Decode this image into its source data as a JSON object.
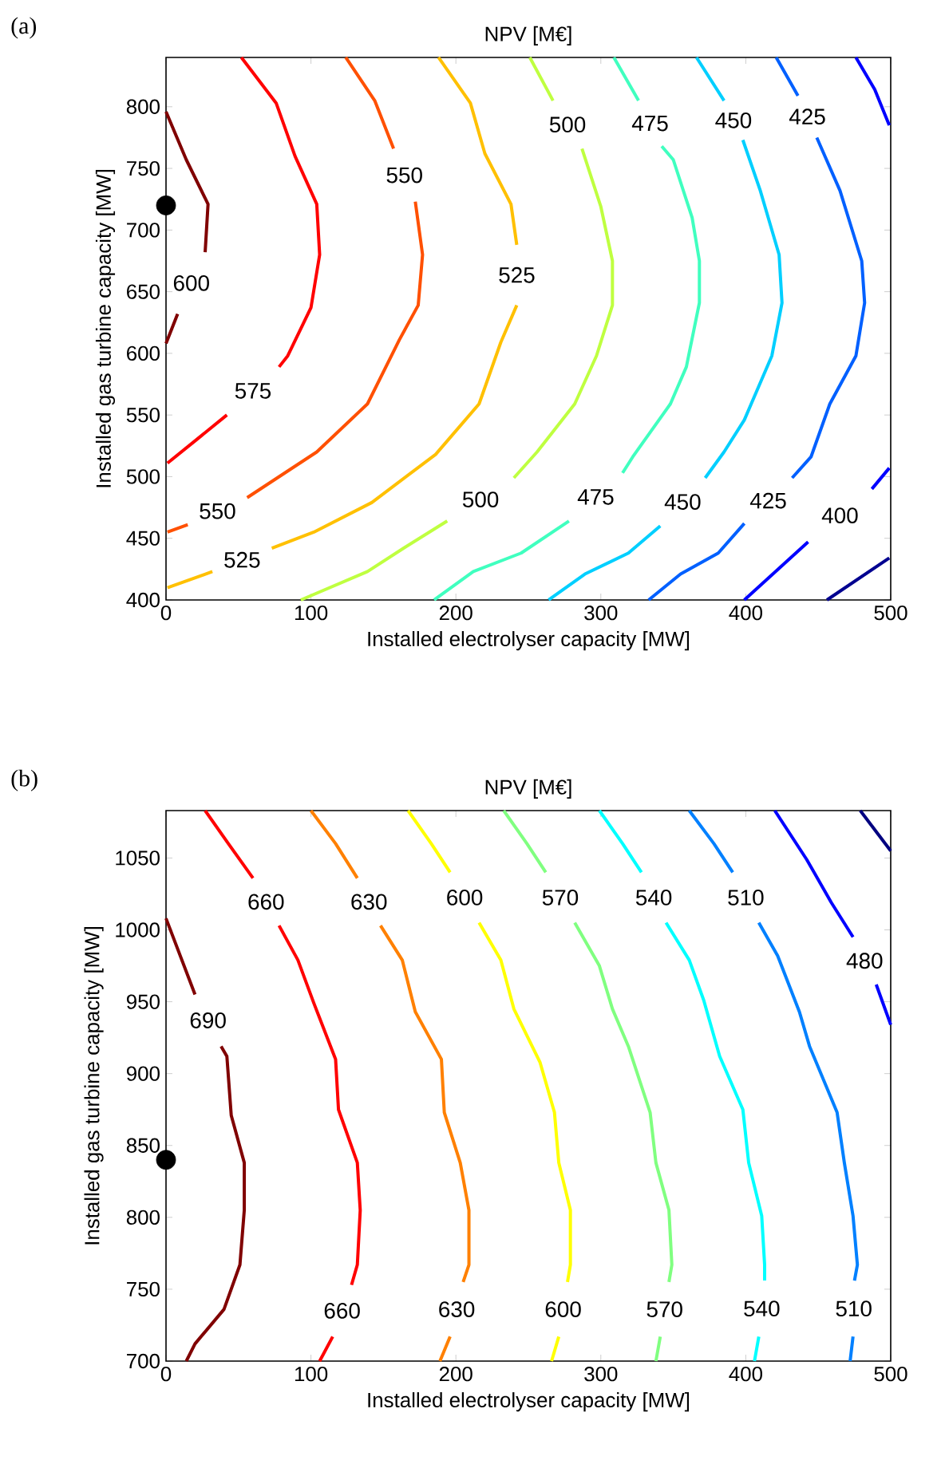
{
  "chart_data": [
    {
      "type": "line",
      "title": "NPV [M€]",
      "xlabel": "Installed electrolyser capacity [MW]",
      "ylabel": "Installed gas turbine capacity [MW]",
      "xlim": [
        0,
        500
      ],
      "xticks": [
        0,
        100,
        200,
        300,
        400,
        500
      ],
      "ylim": [
        400,
        840
      ],
      "yticks": [
        400,
        450,
        500,
        550,
        600,
        650,
        700,
        750,
        800
      ],
      "series": [
        {
          "name": "600",
          "color": "#800000",
          "x": [
            0,
            14,
            29,
            27,
            null,
            8,
            0
          ],
          "values": [
            796,
            757,
            721,
            682,
            null,
            632,
            608
          ]
        },
        {
          "name": "575",
          "color": "#ff0000",
          "x": [
            52,
            76,
            89,
            104,
            106,
            100,
            84,
            78,
            null,
            42,
            20,
            1
          ],
          "values": [
            840,
            803,
            760,
            721,
            680,
            637,
            598,
            589,
            null,
            550,
            529,
            511
          ]
        },
        {
          "name": "550",
          "color": "#ff5000",
          "x": [
            124,
            144,
            157,
            null,
            172,
            177,
            174,
            161,
            139,
            104,
            56,
            null,
            15,
            1
          ],
          "values": [
            840,
            805,
            766,
            null,
            723,
            680,
            639,
            611,
            559,
            520,
            483,
            null,
            461,
            455
          ]
        },
        {
          "name": "525",
          "color": "#ffc000",
          "x": [
            188,
            210,
            220,
            238,
            242,
            null,
            242,
            231,
            216,
            186,
            142,
            102,
            73,
            null,
            32,
            1
          ],
          "values": [
            840,
            803,
            762,
            721,
            688,
            null,
            639,
            609,
            559,
            518,
            479,
            455,
            442,
            null,
            423,
            410
          ]
        },
        {
          "name": "500",
          "color": "#bfff40",
          "x": [
            251,
            267,
            null,
            287,
            300,
            308,
            308,
            297,
            282,
            256,
            240,
            null,
            194,
            164,
            139,
            93
          ],
          "values": [
            840,
            805,
            null,
            766,
            719,
            675,
            639,
            598,
            559,
            520,
            499,
            null,
            464,
            442,
            423,
            400
          ]
        },
        {
          "name": "475",
          "color": "#40ffbf",
          "x": [
            309,
            326,
            null,
            342,
            350,
            363,
            368,
            368,
            359,
            348,
            322,
            315,
            null,
            278,
            245,
            212,
            185
          ],
          "values": [
            840,
            805,
            null,
            768,
            757,
            710,
            675,
            641,
            589,
            559,
            516,
            503,
            null,
            464,
            438,
            423,
            400
          ]
        },
        {
          "name": "450",
          "color": "#00cfff",
          "x": [
            366,
            385,
            null,
            398,
            410,
            423,
            425,
            418,
            399,
            385,
            372,
            null,
            341,
            319,
            289,
            264
          ],
          "values": [
            840,
            805,
            null,
            773,
            732,
            680,
            641,
            598,
            546,
            520,
            499,
            null,
            460,
            438,
            421,
            400
          ]
        },
        {
          "name": "425",
          "color": "#0060ff",
          "x": [
            421,
            436,
            null,
            449,
            465,
            480,
            482,
            476,
            458,
            445,
            432,
            null,
            399,
            381,
            355,
            333
          ],
          "values": [
            840,
            809,
            null,
            775,
            732,
            675,
            641,
            598,
            559,
            516,
            499,
            null,
            462,
            438,
            421,
            400
          ]
        },
        {
          "color": "#0000ff",
          "x": [
            476,
            489,
            499
          ],
          "values": [
            840,
            814,
            785
          ]
        },
        {
          "name": "400",
          "color": "#0000ff",
          "x": [
            499,
            487,
            null,
            443,
            399
          ],
          "values": [
            507,
            490,
            null,
            447,
            400
          ]
        },
        {
          "color": "#000090",
          "x": [
            499,
            456
          ],
          "values": [
            434,
            400
          ]
        },
        {
          "type": "scatter",
          "color": "#000000",
          "x": [
            0
          ],
          "values": [
            720
          ]
        }
      ],
      "annotations": [
        "(a)"
      ]
    },
    {
      "type": "line",
      "title": "NPV [M€]",
      "xlabel": "Installed electrolyser capacity [MW]",
      "ylabel": "Installed gas turbine capacity [MW]",
      "xlim": [
        0,
        500
      ],
      "xticks": [
        0,
        100,
        200,
        300,
        400,
        500
      ],
      "ylim": [
        700,
        1083
      ],
      "yticks": [
        700,
        750,
        800,
        850,
        900,
        950,
        1000,
        1050
      ],
      "series": [
        {
          "name": "690",
          "color": "#800000",
          "x": [
            0,
            20,
            null,
            38,
            42,
            45,
            54,
            54,
            51,
            40,
            20,
            14
          ],
          "values": [
            1008,
            955,
            null,
            919,
            912,
            871,
            838,
            805,
            767,
            736,
            712,
            700
          ]
        },
        {
          "name": "660",
          "color": "#ff0000",
          "x": [
            27,
            43,
            60,
            null,
            78,
            91,
            102,
            117,
            119,
            132,
            134,
            132,
            128,
            null,
            115,
            106
          ],
          "values": [
            1083,
            1060,
            1036,
            null,
            1003,
            979,
            949,
            910,
            875,
            838,
            805,
            767,
            753,
            null,
            717,
            700
          ]
        },
        {
          "name": "630",
          "color": "#ff8000",
          "x": [
            100,
            117,
            132,
            null,
            148,
            163,
            172,
            190,
            192,
            203,
            209,
            209,
            205,
            null,
            196,
            189
          ],
          "values": [
            1083,
            1060,
            1036,
            null,
            1003,
            979,
            943,
            910,
            873,
            838,
            805,
            767,
            755,
            null,
            717,
            700
          ]
        },
        {
          "name": "600",
          "color": "#ffff00",
          "x": [
            167,
            183,
            196,
            null,
            216,
            231,
            240,
            258,
            268,
            271,
            279,
            279,
            277,
            null,
            271,
            266
          ],
          "values": [
            1083,
            1060,
            1040,
            null,
            1005,
            979,
            945,
            908,
            873,
            838,
            805,
            767,
            755,
            null,
            717,
            700
          ]
        },
        {
          "name": "570",
          "color": "#80ff80",
          "x": [
            233,
            249,
            262,
            null,
            282,
            299,
            308,
            319,
            334,
            338,
            347,
            349,
            347,
            null,
            341,
            338
          ],
          "values": [
            1083,
            1060,
            1040,
            null,
            1005,
            975,
            945,
            919,
            873,
            838,
            805,
            767,
            755,
            null,
            717,
            700
          ]
        },
        {
          "name": "540",
          "color": "#00ffff",
          "x": [
            299,
            315,
            328,
            null,
            345,
            361,
            371,
            382,
            398,
            402,
            411,
            413,
            413,
            null,
            409,
            406
          ],
          "values": [
            1083,
            1060,
            1040,
            null,
            1005,
            979,
            951,
            912,
            875,
            838,
            801,
            767,
            756,
            null,
            717,
            700
          ]
        },
        {
          "name": "510",
          "color": "#0080ff",
          "x": [
            361,
            378,
            391,
            null,
            409,
            422,
            437,
            444,
            463,
            468,
            474,
            477,
            475,
            null,
            474,
            472
          ],
          "values": [
            1083,
            1060,
            1040,
            null,
            1005,
            982,
            943,
            919,
            873,
            838,
            801,
            767,
            756,
            null,
            717,
            700
          ]
        },
        {
          "name": "480",
          "color": "#0000ff",
          "x": [
            420,
            442,
            459,
            474,
            null,
            490,
            500
          ],
          "values": [
            1083,
            1049,
            1019,
            995,
            null,
            962,
            934
          ]
        },
        {
          "color": "#000080",
          "x": [
            479,
            500
          ],
          "values": [
            1083,
            1055
          ]
        },
        {
          "type": "scatter",
          "color": "#000000",
          "x": [
            0
          ],
          "values": [
            840
          ]
        }
      ],
      "annotations": [
        "(b)"
      ]
    }
  ]
}
